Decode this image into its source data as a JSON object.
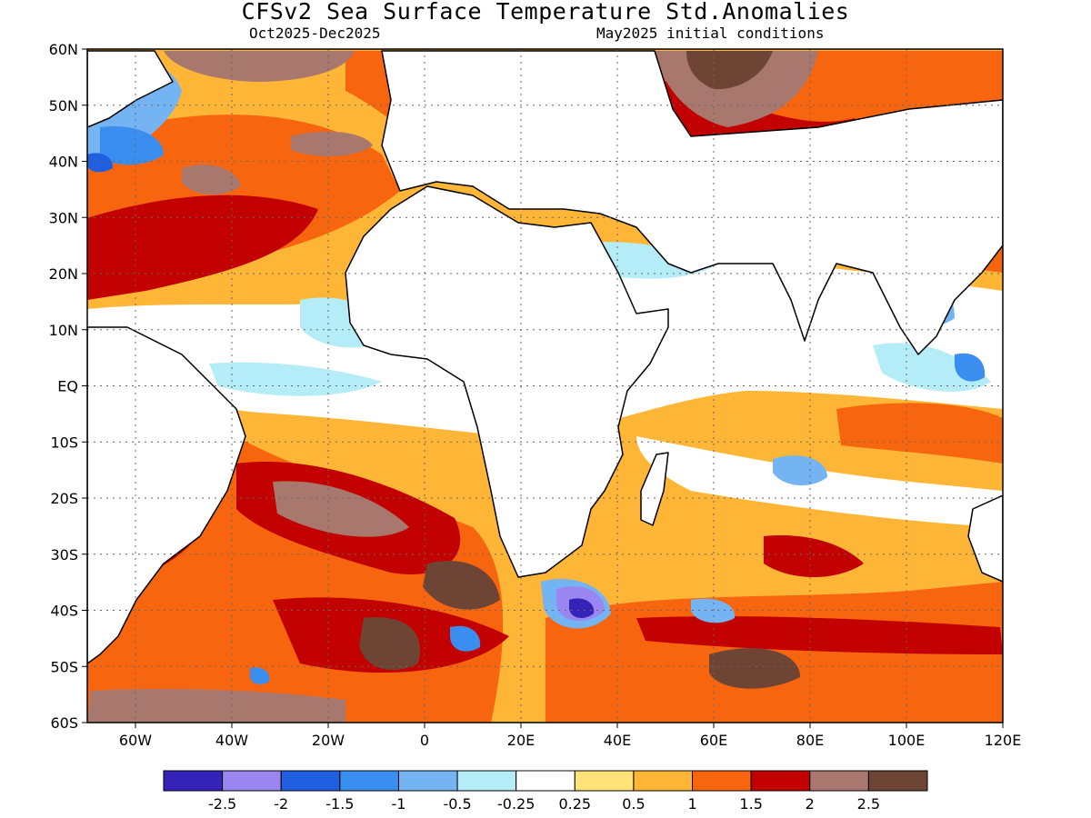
{
  "header": {
    "title": "CFSv2 Sea Surface Temperature Std.Anomalies",
    "period": "Oct2025-Dec2025",
    "initial_conditions": "May2025 initial conditions"
  },
  "map": {
    "projection": "equirectangular",
    "lon_range": [
      -70,
      120
    ],
    "lat_range": [
      -60,
      60
    ],
    "grid_lines": "dotted",
    "y_ticks": [
      "60N",
      "50N",
      "40N",
      "30N",
      "20N",
      "10N",
      "EQ",
      "10S",
      "20S",
      "30S",
      "40S",
      "50S",
      "60S"
    ],
    "x_ticks": [
      "60W",
      "40W",
      "20W",
      "0",
      "20E",
      "40E",
      "60E",
      "80E",
      "100E",
      "120E"
    ]
  },
  "colorbar": {
    "bins": [
      {
        "color": "#3522b8"
      },
      {
        "color": "#9a86f0"
      },
      {
        "color": "#1f5fe0"
      },
      {
        "color": "#3a8ef0"
      },
      {
        "color": "#74b4f2"
      },
      {
        "color": "#b4ecf8"
      },
      {
        "color": "#ffffff"
      },
      {
        "color": "#ffe27a"
      },
      {
        "color": "#ffb636"
      },
      {
        "color": "#f7650f"
      },
      {
        "color": "#c30000"
      },
      {
        "color": "#a8786e"
      },
      {
        "color": "#6e4435"
      }
    ],
    "labels": [
      "-2.5",
      "-2",
      "-1.5",
      "-1",
      "-0.5",
      "-0.25",
      "0.25",
      "0.5",
      "1",
      "1.5",
      "2",
      "2.5"
    ]
  }
}
